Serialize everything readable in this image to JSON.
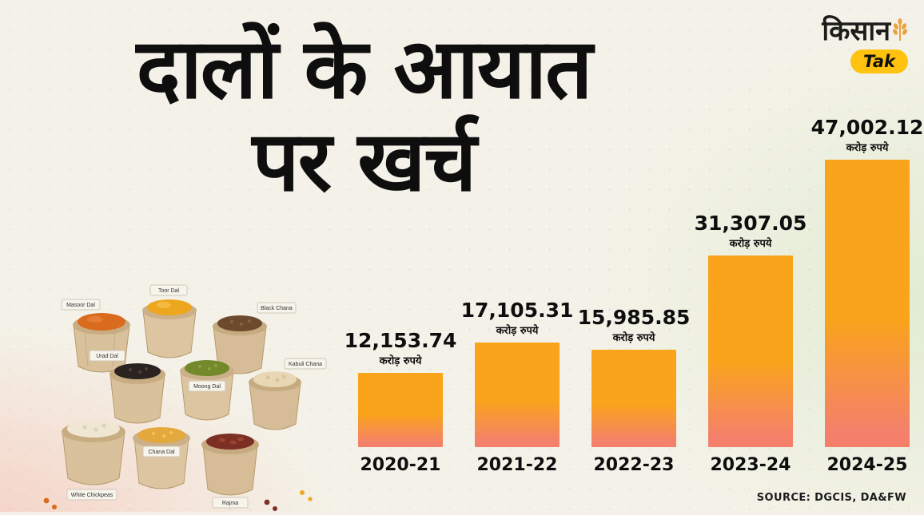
{
  "brand": {
    "kisan": "किसान",
    "tak": "Tak"
  },
  "title": {
    "line1": "दालों के आयात",
    "line2": "पर खर्च"
  },
  "source": "SOURCE: DGCIS, DA&FW",
  "chart_data": {
    "type": "bar",
    "title": "दालों के आयात पर खर्च",
    "categories": [
      "2020-21",
      "2021-22",
      "2022-23",
      "2023-24",
      "2024-25"
    ],
    "values": [
      12153.74,
      17105.31,
      15985.85,
      31307.05,
      47002.12
    ],
    "value_labels": [
      "12,153.74",
      "17,105.31",
      "15,985.85",
      "31,307.05",
      "47,002.12"
    ],
    "unit_label": "करोड़ रुपये",
    "ylabel": "करोड़ रुपये",
    "xlabel": "",
    "ylim": [
      0,
      47002.12
    ],
    "grid": false,
    "legend": "none",
    "bar_color_top": "#F9A41B",
    "bar_color_bottom": "#F4806C"
  },
  "pulses_image": {
    "labels": [
      "Masoor Dal",
      "Toor Dal",
      "Black Chana",
      "Urad Dal",
      "Moong Dal",
      "Kabuli Chana",
      "White Chickpeas",
      "Chana Dal",
      "Rajma"
    ]
  }
}
